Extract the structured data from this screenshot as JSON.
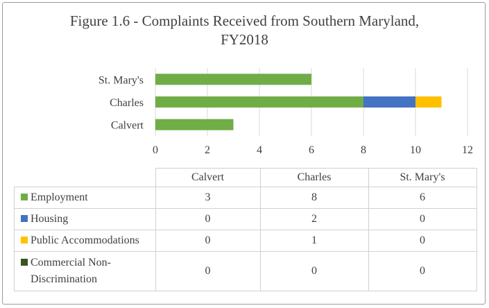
{
  "chart_data": {
    "type": "bar",
    "orientation": "horizontal",
    "stacked": true,
    "title": "Figure 1.6 - Complaints Received from Southern Maryland, FY2018",
    "title_line1": "Figure 1.6 - Complaints Received from Southern Maryland,",
    "title_line2": "FY2018",
    "categories": [
      "Calvert",
      "Charles",
      "St. Mary's"
    ],
    "series": [
      {
        "name": "Employment",
        "color": "#70ad47",
        "values": [
          3,
          8,
          6
        ]
      },
      {
        "name": "Housing",
        "color": "#4472c4",
        "values": [
          0,
          2,
          0
        ]
      },
      {
        "name": "Public Accommodations",
        "color": "#ffc000",
        "values": [
          0,
          1,
          0
        ]
      },
      {
        "name": "Commercial Non-Discrimination",
        "color": "#375623",
        "values": [
          0,
          0,
          0
        ]
      }
    ],
    "x_ticks": [
      "0",
      "2",
      "4",
      "6",
      "8",
      "10",
      "12"
    ],
    "xlim": [
      0,
      12
    ],
    "grid": true,
    "legend": "data table below chart",
    "data_table": {
      "headers": [
        "Calvert",
        "Charles",
        "St. Mary's"
      ],
      "rows": [
        {
          "label": "Employment",
          "label_line1": "Employment",
          "label_line2": "",
          "color": "#70ad47",
          "values": [
            "3",
            "8",
            "6"
          ]
        },
        {
          "label": "Housing",
          "label_line1": "Housing",
          "label_line2": "",
          "color": "#4472c4",
          "values": [
            "0",
            "2",
            "0"
          ]
        },
        {
          "label": "Public Accommodations",
          "label_line1": "Public Accommodations",
          "label_line2": "",
          "color": "#ffc000",
          "values": [
            "0",
            "1",
            "0"
          ]
        },
        {
          "label": "Commercial Non-Discrimination",
          "label_line1": "Commercial Non-",
          "label_line2": "Discrimination",
          "color": "#375623",
          "values": [
            "0",
            "0",
            "0"
          ]
        }
      ]
    }
  }
}
